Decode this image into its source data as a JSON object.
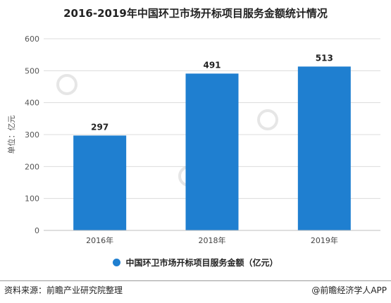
{
  "chart_data": {
    "type": "bar",
    "title": "2016-2019年中国环卫市场开标项目服务金额统计情况",
    "categories": [
      "2016年",
      "2018年",
      "2019年"
    ],
    "values": [
      297,
      491,
      513
    ],
    "series": [
      {
        "name": "中国环卫市场开标项目服务金额（亿元）",
        "values": [
          297,
          491,
          513
        ]
      }
    ],
    "ylabel": "单位：亿元",
    "xlabel": "",
    "ylim": [
      0,
      600
    ],
    "yticks": [
      0,
      100,
      200,
      300,
      400,
      500,
      600
    ],
    "data_labels": [
      "297",
      "491",
      "513"
    ],
    "grid": true,
    "legend_position": "bottom",
    "bar_color": "#1f7fd0"
  },
  "footer": {
    "source": "资料来源：前瞻产业研究院整理",
    "credit": "@前瞻经济学人APP"
  }
}
